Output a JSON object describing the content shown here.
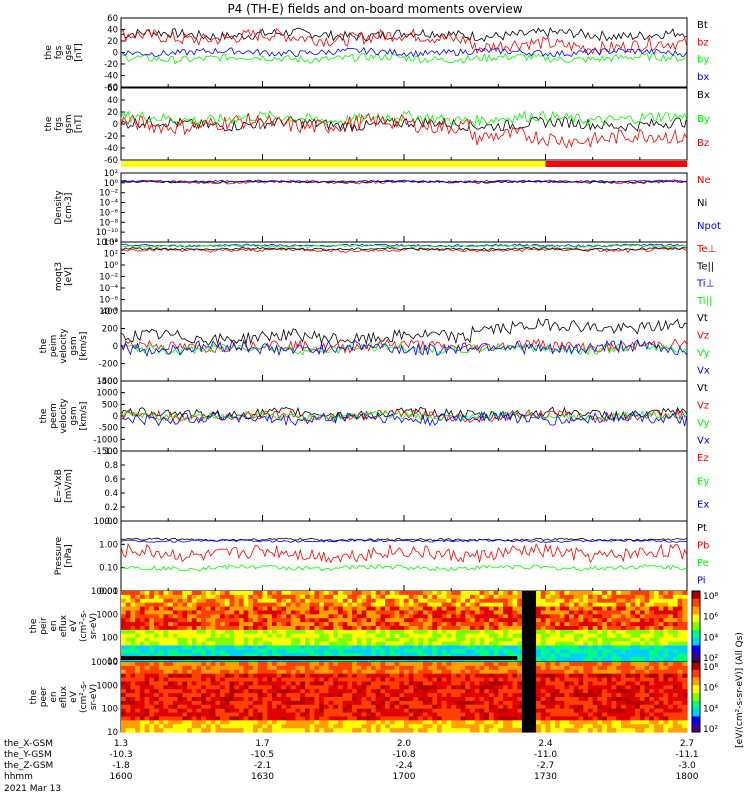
{
  "title": "P4 (TH-E) fields and on-board moments overview",
  "colors": {
    "black": "#000000",
    "red": "#ff0000",
    "green": "#00ff00",
    "blue": "#0000ff",
    "yellow": "#ffff00"
  },
  "chart_data": [
    {
      "type": "line",
      "ylabel": [
        "the",
        "fgs",
        "gse",
        "[nT]"
      ],
      "yticks": [
        "60",
        "40",
        "20",
        "0",
        "-20",
        "-40",
        "-60"
      ],
      "ylim": [
        -60,
        65
      ],
      "series": [
        {
          "name": "Bt",
          "color": "black",
          "base": 35,
          "amp": 9
        },
        {
          "name": "bz",
          "color": "red",
          "base": 30,
          "amp": 12
        },
        {
          "name": "by",
          "color": "green",
          "base": -8,
          "amp": 7
        },
        {
          "name": "bx",
          "color": "blue",
          "base": 3,
          "amp": 6
        }
      ]
    },
    {
      "type": "line",
      "ylabel": [
        "the",
        "fgs",
        "gsm",
        "[nT]"
      ],
      "yticks": [
        "60",
        "40",
        "20",
        "0",
        "-20",
        "-40",
        "-60"
      ],
      "ylim": [
        -70,
        60
      ],
      "series": [
        {
          "name": "Bx",
          "color": "black",
          "base": -5,
          "amp": 10
        },
        {
          "name": "By",
          "color": "green",
          "base": 5,
          "amp": 10
        },
        {
          "name": "Bz",
          "color": "red",
          "base": -5,
          "amp": 14
        }
      ]
    },
    {
      "type": "bar",
      "name": "mode-bar",
      "segments": [
        {
          "from": "1600",
          "to": "1730",
          "color": "yellow"
        },
        {
          "from": "1730",
          "to": "1800",
          "color": "red"
        }
      ]
    },
    {
      "type": "line",
      "scale": "log",
      "ylabel": [
        "Density",
        "[cm-3]"
      ],
      "yticks": [
        "10²",
        "10⁰",
        "10⁻²",
        "10⁻⁴",
        "10⁻⁶",
        "10⁻⁸",
        "10⁻¹⁰",
        "10⁻¹²"
      ],
      "ylim": [
        -12,
        2
      ],
      "series": [
        {
          "name": "Ne",
          "color": "red",
          "base": 0.2,
          "amp": 0.3
        },
        {
          "name": "Ni",
          "color": "black",
          "base": 0.2,
          "amp": 0.2
        },
        {
          "name": "Npot",
          "color": "blue",
          "base": 0.3,
          "amp": 0.2
        }
      ]
    },
    {
      "type": "line",
      "scale": "log",
      "ylabel": [
        "moqt3",
        "[eV]"
      ],
      "yticks": [
        "10⁴",
        "10²",
        "10⁰",
        "10⁻²",
        "10⁻⁴",
        "10⁻⁶",
        "10⁻⁸"
      ],
      "ylim": [
        -8,
        4
      ],
      "series": [
        {
          "name": "Te⊥",
          "color": "red",
          "base": 2.6,
          "amp": 0.3
        },
        {
          "name": "Te||",
          "color": "black",
          "base": 2.8,
          "amp": 0.2
        },
        {
          "name": "Ti⊥",
          "color": "blue",
          "base": 3.4,
          "amp": 0.2
        },
        {
          "name": "Ti||",
          "color": "green",
          "base": 3.3,
          "amp": 0.2
        }
      ]
    },
    {
      "type": "line",
      "ylabel": [
        "the",
        "peim",
        "velocity",
        "gsm",
        "[km/s]"
      ],
      "yticks": [
        "400",
        "200",
        "0",
        "-200",
        "-400"
      ],
      "ylim": [
        -400,
        400
      ],
      "series": [
        {
          "name": "Vt",
          "color": "black",
          "base": 100,
          "amp": 70
        },
        {
          "name": "Vz",
          "color": "red",
          "base": 0,
          "amp": 60
        },
        {
          "name": "Vy",
          "color": "green",
          "base": -30,
          "amp": 50
        },
        {
          "name": "Vx",
          "color": "blue",
          "base": -20,
          "amp": 70
        }
      ]
    },
    {
      "type": "line",
      "ylabel": [
        "the",
        "peem",
        "velocity",
        "gsm",
        "[km/s]"
      ],
      "yticks": [
        "1500",
        "1000",
        "500",
        "0",
        "-500",
        "-1000",
        "-1500"
      ],
      "ylim": [
        -1500,
        1500
      ],
      "series": [
        {
          "name": "Vt",
          "color": "black",
          "base": 100,
          "amp": 200
        },
        {
          "name": "Vz",
          "color": "red",
          "base": 0,
          "amp": 200
        },
        {
          "name": "Vy",
          "color": "green",
          "base": 0,
          "amp": 150
        },
        {
          "name": "Vx",
          "color": "blue",
          "base": -100,
          "amp": 250
        }
      ]
    },
    {
      "type": "line",
      "ylabel": [
        "E=-VxB",
        "[mV/m]"
      ],
      "yticks": [
        "1.0",
        "0.8",
        "0.6",
        "0.4",
        "0.2",
        "0.0"
      ],
      "ylim": [
        0,
        1
      ],
      "series": [
        {
          "name": "Ez",
          "color": "red"
        },
        {
          "name": "Ey",
          "color": "green"
        },
        {
          "name": "Ex",
          "color": "blue"
        }
      ]
    },
    {
      "type": "line",
      "scale": "log",
      "ylabel": [
        "Pressure",
        "[nPa]"
      ],
      "yticks": [
        "10.00",
        "1.00",
        "0.10",
        "0.01"
      ],
      "ylim": [
        -2,
        1
      ],
      "series": [
        {
          "name": "Pt",
          "color": "black",
          "base": 0.2,
          "amp": 0.05
        },
        {
          "name": "Pb",
          "color": "red",
          "base": -0.4,
          "amp": 0.3
        },
        {
          "name": "Pe",
          "color": "green",
          "base": -1.0,
          "amp": 0.1
        },
        {
          "name": "Pi",
          "color": "blue",
          "base": 0.15,
          "amp": 0.05
        }
      ]
    },
    {
      "type": "heatmap",
      "ylabel": [
        "the",
        "peir",
        "en",
        "eflux",
        "eV",
        "(cm²-s-",
        "sr-eV)"
      ],
      "yticks": [
        "10000",
        "1000",
        "100",
        "10"
      ],
      "scale": "log"
    },
    {
      "type": "heatmap",
      "ylabel": [
        "the",
        "peer",
        "en",
        "eflux",
        "eV",
        "(cm²-s-",
        "sr-eV)"
      ],
      "yticks": [
        "10000",
        "1000",
        "100",
        "10"
      ],
      "scale": "log"
    }
  ],
  "colorbar_label": "[eV/(cm²-s-sr-eV)] (All Qs)",
  "colorbar_ticks": {
    "top": [
      "10⁸",
      "10⁶",
      "10⁴",
      "10²"
    ],
    "bottom": [
      "10⁸",
      "10⁶",
      "10⁴",
      "10²"
    ]
  },
  "ephem": {
    "labels": [
      "the_X-GSM",
      "the_Y-GSM",
      "the_Z-GSM",
      "hhmm",
      "2021 Mar 13"
    ],
    "rows": [
      [
        "1.3",
        "1.7",
        "2.0",
        "2.4",
        "2.7"
      ],
      [
        "-10.3",
        "-10.5",
        "-10.8",
        "-11.0",
        "-11.1"
      ],
      [
        "-1.8",
        "-2.1",
        "-2.4",
        "-2.7",
        "-3.0"
      ],
      [
        "1600",
        "1630",
        "1700",
        "1730",
        "1800"
      ]
    ]
  }
}
